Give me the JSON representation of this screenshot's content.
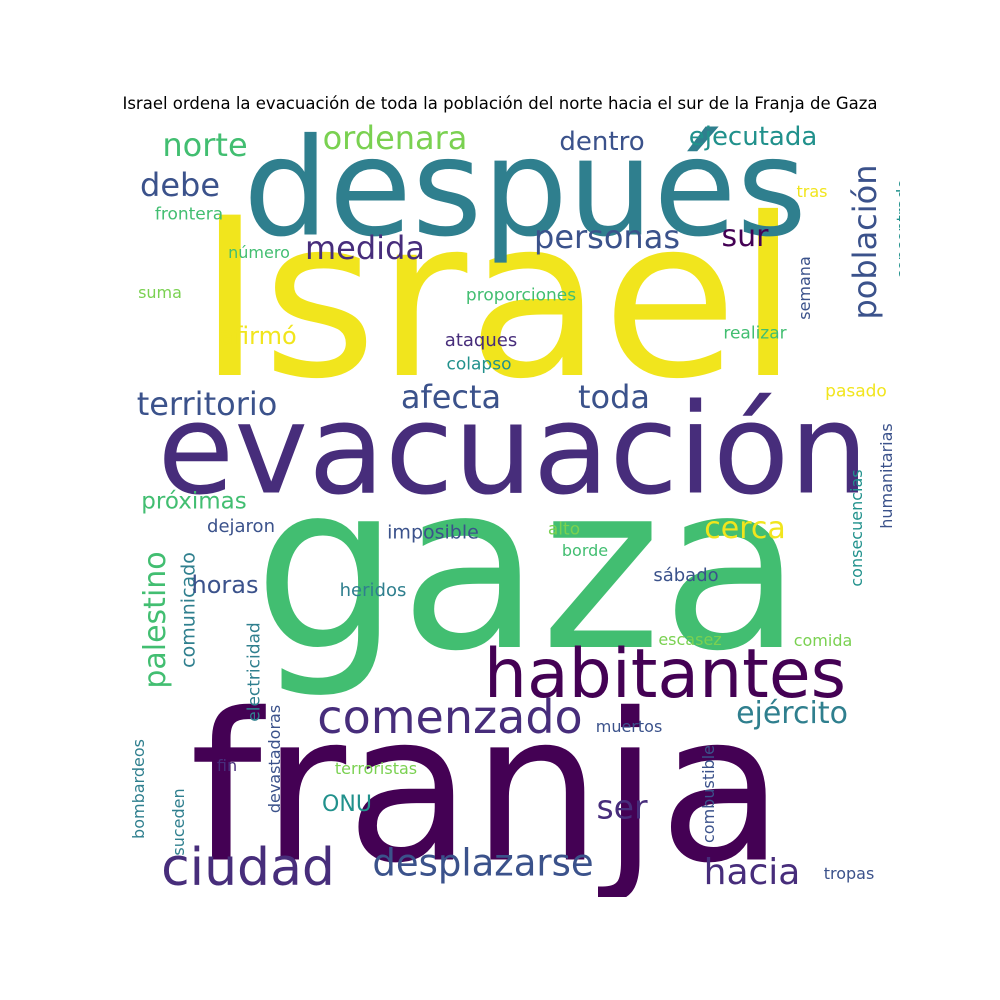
{
  "title": "Israel ordena la evacuación de toda la población del norte hacia el sur de la Franja de Gaza",
  "colors": {
    "yellow": "#f1e51d",
    "teal": "#2f7f8e",
    "indigo": "#472d7b",
    "green": "#42be71",
    "purple": "#440154",
    "blue": "#3b528b",
    "cyan": "#21918c",
    "lime": "#7ad151",
    "mint": "#35b779"
  },
  "words": [
    {
      "text": "Israel",
      "color": "yellow"
    },
    {
      "text": "después",
      "color": "teal"
    },
    {
      "text": "evacuación",
      "color": "indigo"
    },
    {
      "text": "gaza",
      "color": "green"
    },
    {
      "text": "franja",
      "color": "purple"
    },
    {
      "text": "habitantes",
      "color": "purple"
    },
    {
      "text": "comenzado",
      "color": "indigo"
    },
    {
      "text": "ciudad",
      "color": "indigo"
    },
    {
      "text": "desplazarse",
      "color": "blue"
    },
    {
      "text": "hacia",
      "color": "indigo"
    },
    {
      "text": "ejército",
      "color": "teal"
    },
    {
      "text": "ser",
      "color": "indigo"
    },
    {
      "text": "ONU",
      "color": "cyan"
    },
    {
      "text": "palestino",
      "color": "green"
    },
    {
      "text": "comunicado",
      "color": "teal"
    },
    {
      "text": "horas",
      "color": "blue"
    },
    {
      "text": "cerca",
      "color": "yellow"
    },
    {
      "text": "próximas",
      "color": "green"
    },
    {
      "text": "dejaron",
      "color": "blue"
    },
    {
      "text": "imposible",
      "color": "blue"
    },
    {
      "text": "alto",
      "color": "lime"
    },
    {
      "text": "borde",
      "color": "green"
    },
    {
      "text": "sábado",
      "color": "blue"
    },
    {
      "text": "heridos",
      "color": "teal"
    },
    {
      "text": "escasez",
      "color": "lime"
    },
    {
      "text": "comida",
      "color": "lime"
    },
    {
      "text": "consecuencias",
      "color": "cyan"
    },
    {
      "text": "humanitarias",
      "color": "blue"
    },
    {
      "text": "electricidad",
      "color": "teal"
    },
    {
      "text": "devastadoras",
      "color": "blue"
    },
    {
      "text": "bombardeos",
      "color": "teal"
    },
    {
      "text": "suceden",
      "color": "teal"
    },
    {
      "text": "fin",
      "color": "indigo"
    },
    {
      "text": "terroristas",
      "color": "lime"
    },
    {
      "text": "muertos",
      "color": "blue"
    },
    {
      "text": "combustible",
      "color": "blue"
    },
    {
      "text": "tropas",
      "color": "blue"
    },
    {
      "text": "territorio",
      "color": "blue"
    },
    {
      "text": "afecta",
      "color": "blue"
    },
    {
      "text": "toda",
      "color": "blue"
    },
    {
      "text": "afirmó",
      "color": "yellow"
    },
    {
      "text": "ataques",
      "color": "indigo"
    },
    {
      "text": "colapso",
      "color": "cyan"
    },
    {
      "text": "realizar",
      "color": "green"
    },
    {
      "text": "pasado",
      "color": "yellow"
    },
    {
      "text": "proporciones",
      "color": "green"
    },
    {
      "text": "semana",
      "color": "blue"
    },
    {
      "text": "población",
      "color": "blue"
    },
    {
      "text": "concentrado",
      "color": "cyan"
    },
    {
      "text": "tras",
      "color": "yellow"
    },
    {
      "text": "ejecutada",
      "color": "cyan"
    },
    {
      "text": "dentro",
      "color": "blue"
    },
    {
      "text": "ordenara",
      "color": "lime"
    },
    {
      "text": "norte",
      "color": "green"
    },
    {
      "text": "debe",
      "color": "blue"
    },
    {
      "text": "frontera",
      "color": "green"
    },
    {
      "text": "medida",
      "color": "indigo"
    },
    {
      "text": "número",
      "color": "green"
    },
    {
      "text": "suma",
      "color": "lime"
    },
    {
      "text": "personas",
      "color": "blue"
    },
    {
      "text": "sur",
      "color": "purple"
    }
  ]
}
